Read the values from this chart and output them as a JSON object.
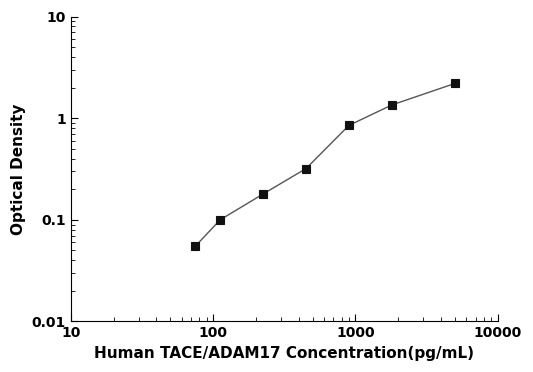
{
  "x": [
    75,
    112,
    225,
    450,
    900,
    1800,
    5000
  ],
  "y": [
    0.055,
    0.1,
    0.18,
    0.32,
    0.85,
    1.35,
    2.2
  ],
  "xlabel": "Human TACE/ADAM17 Concentration(pg/mL)",
  "ylabel": "Optical Density",
  "xlim": [
    10,
    10000
  ],
  "ylim": [
    0.01,
    10
  ],
  "xticks": [
    10,
    100,
    1000,
    10000
  ],
  "xtick_labels": [
    "10",
    "100",
    "1000",
    "10000"
  ],
  "yticks": [
    0.01,
    0.1,
    1,
    10
  ],
  "ytick_labels": [
    "0.01",
    "0.1",
    "1",
    "10"
  ],
  "line_color": "#555555",
  "marker": "s",
  "marker_color": "#111111",
  "marker_size": 6,
  "linewidth": 1.0,
  "background_color": "#ffffff",
  "xlabel_fontsize": 11,
  "ylabel_fontsize": 11,
  "tick_fontsize": 10,
  "font_weight": "bold"
}
